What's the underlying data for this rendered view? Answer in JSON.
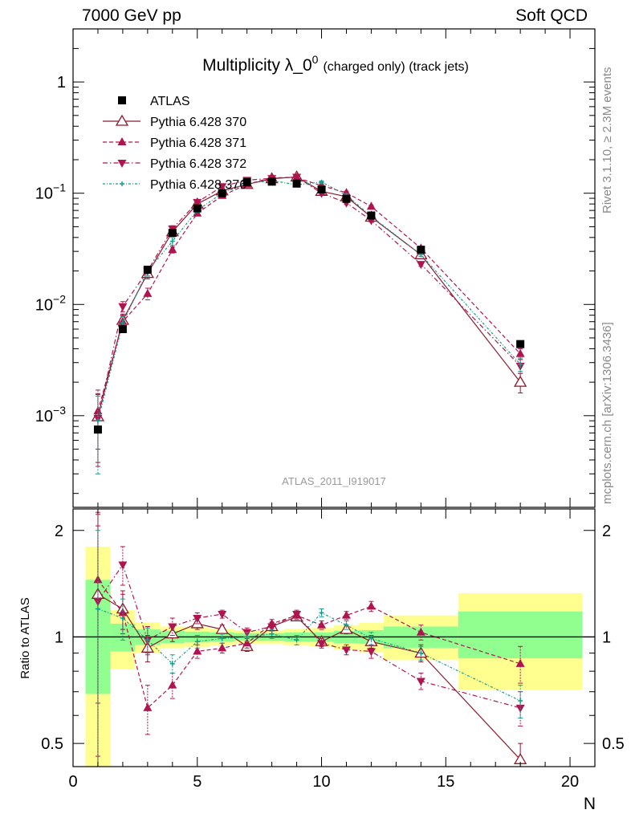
{
  "header": {
    "left": "7000 GeV pp",
    "right": "Soft QCD"
  },
  "side_labels": {
    "top": "Rivet 3.1.10, ≥ 2.3M events",
    "bottom": "mcplots.cern.ch [arXiv:1306.3436]"
  },
  "colors": {
    "atlas": "#000000",
    "p370": "#8b1a2b",
    "pink": "#b0144f",
    "p376": "#1a9a8a",
    "green": "#90ff90",
    "yellow": "#ffff90"
  },
  "chart_data": [
    {
      "type": "scatter",
      "title": "Multiplicity λ_0",
      "title_superscript": "0",
      "title_suffix": "(charged only) (track jets)",
      "watermark": "ATLAS_2011_I919017",
      "ylog": true,
      "xlim": [
        0,
        21
      ],
      "ylim": [
        0.00015,
        3
      ],
      "yticks": [
        {
          "v": 0.001,
          "base": "10",
          "exp": "−3"
        },
        {
          "v": 0.01,
          "base": "10",
          "exp": "−2"
        },
        {
          "v": 0.1,
          "base": "10",
          "exp": "−1"
        },
        {
          "v": 1,
          "base": "1",
          "exp": ""
        }
      ],
      "legend_position": "top-left",
      "series": [
        {
          "name": "ATLAS",
          "style": "data",
          "x": [
            1,
            2,
            3,
            4,
            5,
            6,
            7,
            8,
            9,
            10,
            11,
            12,
            14,
            18
          ],
          "y": [
            0.00075,
            0.006,
            0.0205,
            0.044,
            0.073,
            0.1,
            0.126,
            0.127,
            0.122,
            0.108,
            0.089,
            0.063,
            0.031,
            0.0044
          ]
        },
        {
          "name": "Pythia 6.428 370",
          "style": "tri-open",
          "x": [
            1,
            2,
            3,
            4,
            5,
            6,
            7,
            8,
            9,
            10,
            11,
            12,
            14,
            18
          ],
          "y": [
            0.00098,
            0.0072,
            0.019,
            0.045,
            0.08,
            0.105,
            0.12,
            0.135,
            0.14,
            0.104,
            0.093,
            0.061,
            0.028,
            0.002
          ],
          "yerr": [
            0.0006,
            0.001,
            0.002,
            0.003,
            0.003,
            0.003,
            0.003,
            0.003,
            0.003,
            0.003,
            0.003,
            0.002,
            0.001,
            0.0004
          ]
        },
        {
          "name": "Pythia 6.428 371",
          "style": "tri-up",
          "x": [
            1,
            2,
            3,
            4,
            5,
            6,
            7,
            8,
            9,
            10,
            11,
            12,
            14,
            18
          ],
          "y": [
            0.0011,
            0.007,
            0.0125,
            0.031,
            0.066,
            0.095,
            0.12,
            0.138,
            0.138,
            0.117,
            0.101,
            0.076,
            0.032,
            0.0036
          ],
          "yerr": [
            0.0006,
            0.001,
            0.0015,
            0.002,
            0.003,
            0.003,
            0.003,
            0.003,
            0.003,
            0.003,
            0.003,
            0.002,
            0.001,
            0.0004
          ]
        },
        {
          "name": "Pythia 6.428 372",
          "style": "tri-down",
          "x": [
            1,
            2,
            3,
            4,
            5,
            6,
            7,
            8,
            9,
            10,
            11,
            12,
            14,
            18
          ],
          "y": [
            0.00095,
            0.0096,
            0.02,
            0.048,
            0.083,
            0.115,
            0.131,
            0.136,
            0.14,
            0.1,
            0.082,
            0.057,
            0.023,
            0.0028
          ],
          "yerr": [
            0.0006,
            0.001,
            0.002,
            0.003,
            0.003,
            0.003,
            0.003,
            0.003,
            0.003,
            0.003,
            0.003,
            0.002,
            0.001,
            0.0004
          ]
        },
        {
          "name": "Pythia 6.428 376",
          "style": "star",
          "x": [
            1,
            2,
            3,
            4,
            5,
            6,
            7,
            8,
            9,
            10,
            11,
            12,
            14,
            18
          ],
          "y": [
            0.0009,
            0.0068,
            0.02,
            0.037,
            0.07,
            0.1,
            0.122,
            0.13,
            0.119,
            0.126,
            0.096,
            0.062,
            0.028,
            0.0029
          ],
          "yerr": [
            0.0006,
            0.001,
            0.002,
            0.003,
            0.003,
            0.003,
            0.003,
            0.003,
            0.003,
            0.003,
            0.003,
            0.002,
            0.001,
            0.0004
          ]
        }
      ]
    },
    {
      "type": "scatter",
      "xlabel": "N",
      "ylabel": "Ratio to ATLAS",
      "ylog": true,
      "xlim": [
        0,
        21
      ],
      "ylim": [
        0.43,
        2.3
      ],
      "xticks": [
        0,
        5,
        10,
        15,
        20
      ],
      "yticks": [
        0.5,
        1,
        2
      ],
      "reference": 1,
      "bands": {
        "edges": [
          0.5,
          1.5,
          2.5,
          3.5,
          4.5,
          5.5,
          6.5,
          7.5,
          8.5,
          9.5,
          10.5,
          11.5,
          12.5,
          15.5,
          20.5
        ],
        "green_low": [
          0.69,
          0.91,
          0.95,
          0.96,
          0.965,
          0.97,
          0.975,
          0.975,
          0.97,
          0.97,
          0.96,
          0.955,
          0.93,
          0.87
        ],
        "green_high": [
          1.45,
          1.09,
          1.05,
          1.04,
          1.035,
          1.03,
          1.025,
          1.025,
          1.03,
          1.03,
          1.04,
          1.045,
          1.07,
          1.18
        ],
        "yellow_low": [
          0.3,
          0.81,
          0.9,
          0.93,
          0.935,
          0.945,
          0.955,
          0.955,
          0.945,
          0.94,
          0.92,
          0.905,
          0.86,
          0.71
        ],
        "yellow_high": [
          1.8,
          1.19,
          1.1,
          1.07,
          1.065,
          1.055,
          1.045,
          1.045,
          1.055,
          1.06,
          1.08,
          1.095,
          1.15,
          1.33
        ]
      },
      "series": [
        {
          "name": "Pythia 6.428 370",
          "style": "tri-open",
          "x": [
            1,
            2,
            3,
            4,
            5,
            6,
            7,
            8,
            9,
            10,
            11,
            12,
            14,
            18
          ],
          "y": [
            1.32,
            1.2,
            0.93,
            1.02,
            1.09,
            1.05,
            0.94,
            1.07,
            1.14,
            0.97,
            1.05,
            0.97,
            0.9,
            0.45
          ],
          "yerr": [
            0.9,
            0.15,
            0.08,
            0.05,
            0.04,
            0.03,
            0.03,
            0.03,
            0.03,
            0.03,
            0.03,
            0.04,
            0.05,
            0.05
          ]
        },
        {
          "name": "Pythia 6.428 371",
          "style": "tri-up",
          "x": [
            1,
            2,
            3,
            4,
            5,
            6,
            7,
            8,
            9,
            10,
            11,
            12,
            14,
            18
          ],
          "y": [
            1.45,
            1.17,
            0.63,
            0.73,
            0.91,
            0.93,
            0.96,
            1.09,
            1.15,
            1.08,
            1.15,
            1.22,
            1.03,
            0.84
          ],
          "yerr": [
            0.8,
            0.15,
            0.1,
            0.06,
            0.04,
            0.03,
            0.03,
            0.03,
            0.03,
            0.03,
            0.03,
            0.04,
            0.05,
            0.1
          ]
        },
        {
          "name": "Pythia 6.428 372",
          "style": "tri-down",
          "x": [
            1,
            2,
            3,
            4,
            5,
            6,
            7,
            8,
            9,
            10,
            11,
            12,
            14,
            18
          ],
          "y": [
            1.26,
            1.6,
            0.98,
            1.07,
            1.13,
            1.16,
            1.03,
            1.07,
            1.16,
            0.96,
            0.92,
            0.91,
            0.75,
            0.63
          ],
          "yerr": [
            0.8,
            0.2,
            0.09,
            0.06,
            0.04,
            0.03,
            0.03,
            0.03,
            0.03,
            0.03,
            0.03,
            0.04,
            0.04,
            0.07
          ]
        },
        {
          "name": "Pythia 6.428 376",
          "style": "star",
          "x": [
            1,
            2,
            3,
            4,
            5,
            6,
            7,
            8,
            9,
            10,
            11,
            12,
            14,
            18
          ],
          "y": [
            1.2,
            1.13,
            0.98,
            0.84,
            0.97,
            0.99,
            1.0,
            1.02,
            0.98,
            1.17,
            1.08,
            0.99,
            0.9,
            0.66
          ],
          "yerr": [
            0.8,
            0.15,
            0.08,
            0.05,
            0.04,
            0.03,
            0.03,
            0.03,
            0.03,
            0.03,
            0.03,
            0.04,
            0.04,
            0.07
          ]
        }
      ]
    }
  ]
}
